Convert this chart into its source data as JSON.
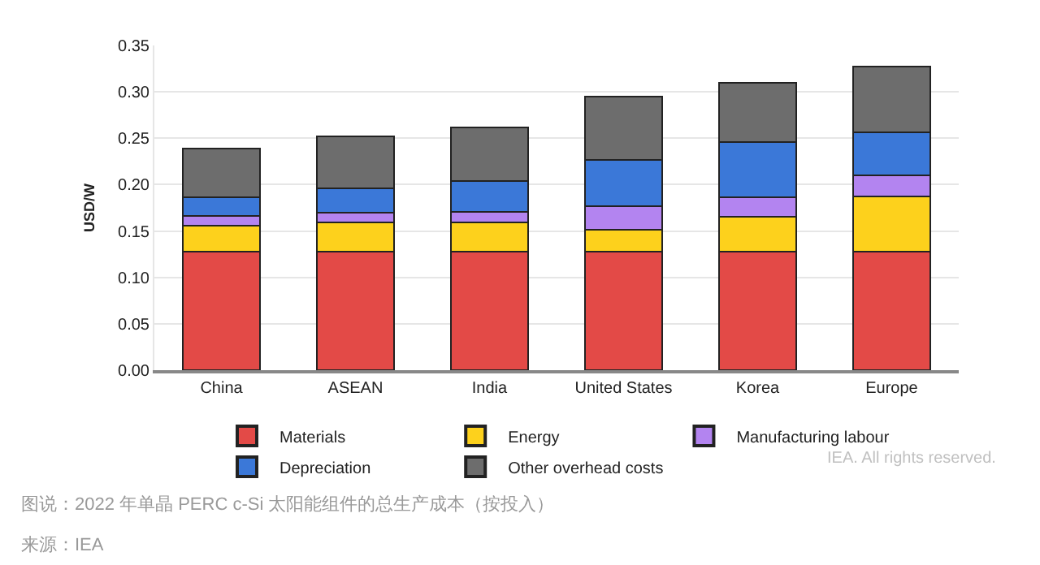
{
  "chart_data": {
    "type": "bar",
    "stacked": true,
    "ylabel": "USD/W",
    "categories": [
      "China",
      "ASEAN",
      "India",
      "United States",
      "Korea",
      "Europe"
    ],
    "series": [
      {
        "name": "Materials",
        "color": "#e34a47",
        "values": [
          0.128,
          0.128,
          0.128,
          0.128,
          0.128,
          0.128
        ]
      },
      {
        "name": "Energy",
        "color": "#fdd11c",
        "values": [
          0.028,
          0.031,
          0.031,
          0.023,
          0.037,
          0.059
        ]
      },
      {
        "name": "Manufacturing labour",
        "color": "#b384f0",
        "values": [
          0.01,
          0.011,
          0.012,
          0.026,
          0.021,
          0.023
        ]
      },
      {
        "name": "Depreciation",
        "color": "#3b78d8",
        "values": [
          0.02,
          0.026,
          0.033,
          0.05,
          0.06,
          0.046
        ]
      },
      {
        "name": "Other overhead costs",
        "color": "#6d6d6d",
        "values": [
          0.053,
          0.056,
          0.058,
          0.068,
          0.064,
          0.071
        ]
      }
    ],
    "ylim": [
      0,
      0.35
    ],
    "yticks": [
      {
        "value": 0,
        "label": "0.00"
      },
      0.05,
      {
        "value": 0.1,
        "label": "0.10"
      },
      0.15,
      {
        "value": 0.2,
        "label": "0.20"
      },
      0.25,
      {
        "value": 0.3,
        "label": "0.30"
      },
      0.35
    ],
    "grid": "y",
    "legend": "bottom",
    "annotations": [
      "IEA. All rights reserved.",
      "图说：2022 年单晶 PERC c-Si 太阳能组件的总生产成本（按投入）",
      "来源：IEA"
    ]
  }
}
